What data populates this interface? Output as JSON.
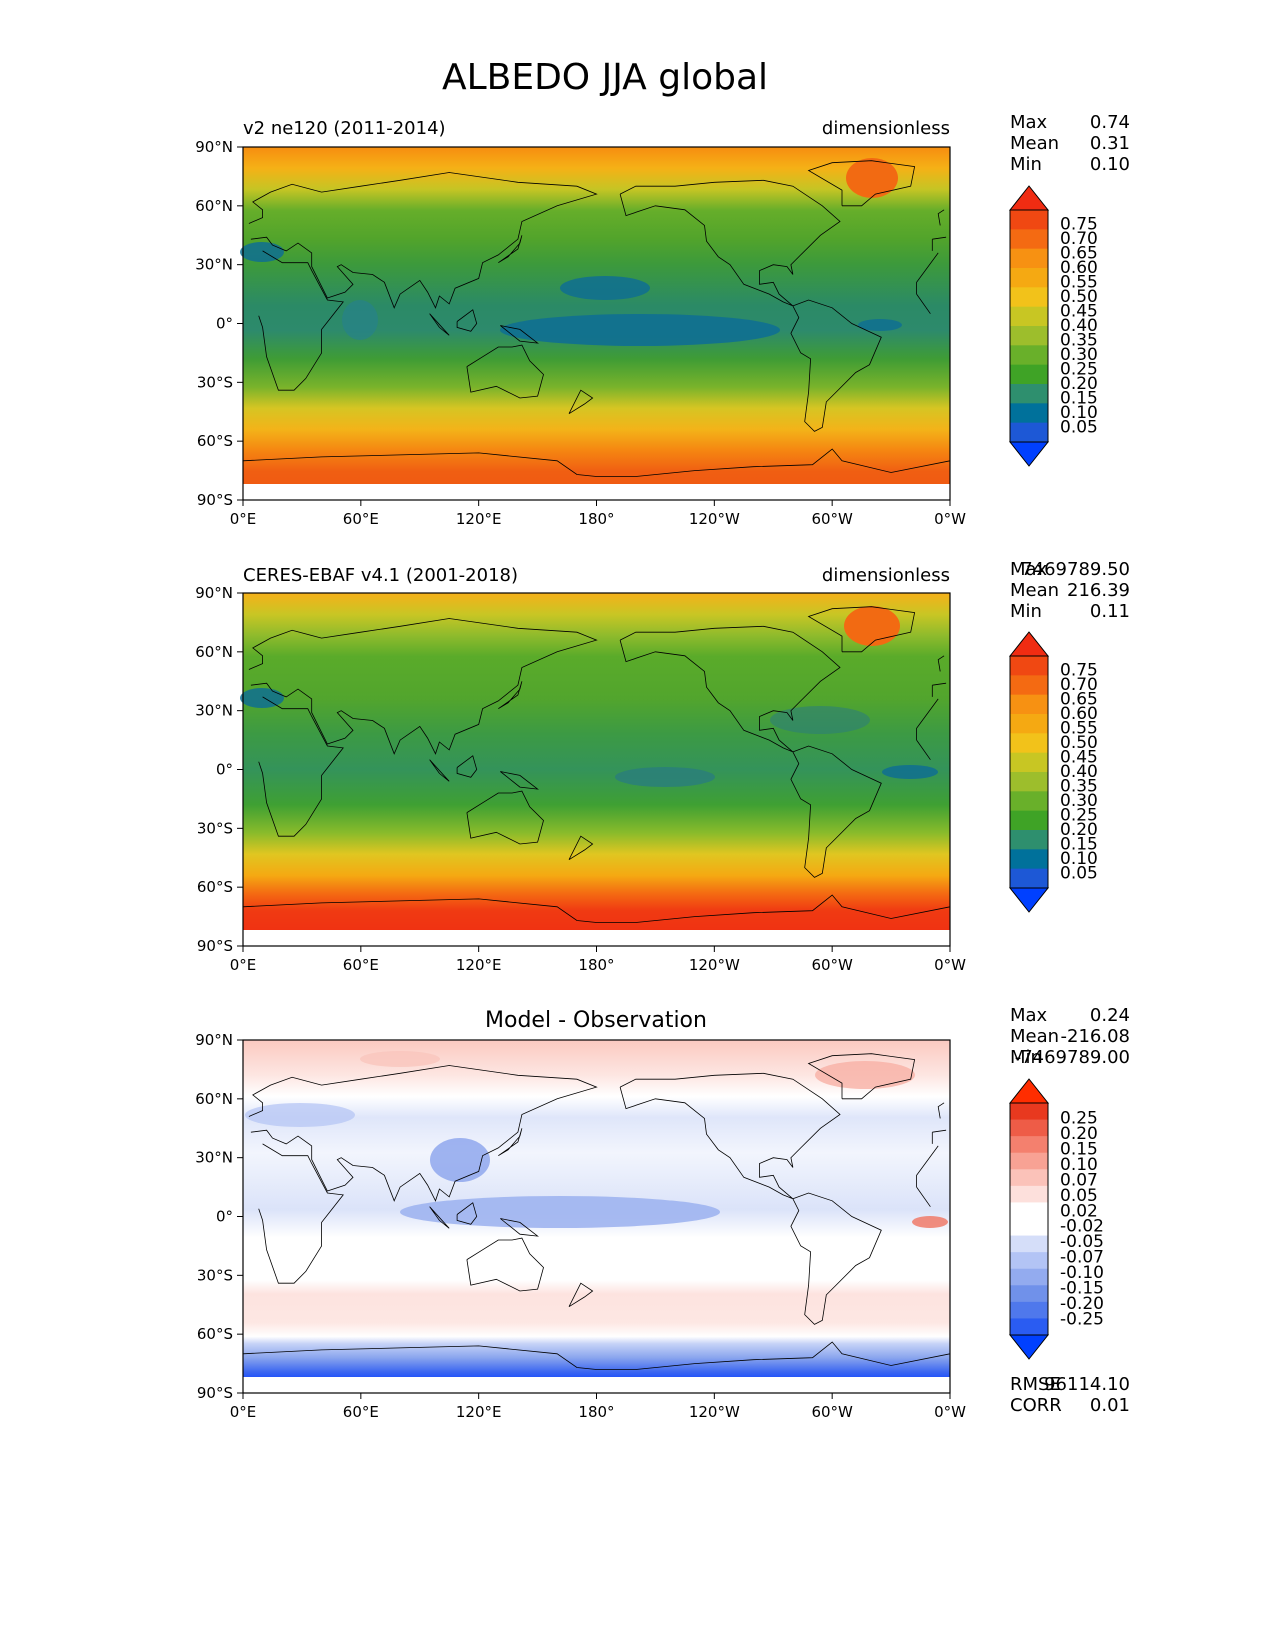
{
  "figure_title": "ALBEDO JJA global",
  "colors": {
    "model_levels": [
      "#0040ff",
      "#1d58d6",
      "#00719b",
      "#2e8f6e",
      "#3fa326",
      "#69b02a",
      "#9dbe2c",
      "#c8c623",
      "#f2c21a",
      "#f5a912",
      "#f79112",
      "#f46a12",
      "#f04812",
      "#f02c12"
    ],
    "diff_levels": [
      "#0040ff",
      "#2a5cf2",
      "#4f78ec",
      "#7091ea",
      "#93abef",
      "#b3c4f5",
      "#d5def9",
      "#ffffff",
      "#ffffff",
      "#fde0dc",
      "#fbc2b9",
      "#f8a294",
      "#f4806e",
      "#ee5c47",
      "#e8391f",
      "#ff2d00"
    ],
    "land_outline": "#000000"
  },
  "panels": [
    {
      "left_title": "v2 ne120 (2011-2014)",
      "right_title": "dimensionless",
      "center_title": "",
      "stats": [
        {
          "label": "Max",
          "value": "0.74"
        },
        {
          "label": "Mean",
          "value": "0.31"
        },
        {
          "label": "Min",
          "value": "0.10"
        }
      ],
      "colorbar_ticks": [
        "0.75",
        "0.70",
        "0.65",
        "0.60",
        "0.55",
        "0.50",
        "0.45",
        "0.40",
        "0.35",
        "0.30",
        "0.25",
        "0.20",
        "0.15",
        "0.10",
        "0.05"
      ],
      "metrics": []
    },
    {
      "left_title": "CERES-EBAF v4.1 (2001-2018)",
      "right_title": "dimensionless",
      "center_title": "",
      "stats": [
        {
          "label": "Max",
          "value": "7469789.50"
        },
        {
          "label": "Mean",
          "value": "216.39"
        },
        {
          "label": "Min",
          "value": "0.11"
        }
      ],
      "colorbar_ticks": [
        "0.75",
        "0.70",
        "0.65",
        "0.60",
        "0.55",
        "0.50",
        "0.45",
        "0.40",
        "0.35",
        "0.30",
        "0.25",
        "0.20",
        "0.15",
        "0.10",
        "0.05"
      ],
      "metrics": []
    },
    {
      "left_title": "",
      "right_title": "",
      "center_title": "Model - Observation",
      "stats": [
        {
          "label": "Max",
          "value": "0.24"
        },
        {
          "label": "Mean",
          "value": "-216.08"
        },
        {
          "label": "Min",
          "value": "-7469789.00"
        }
      ],
      "colorbar_ticks": [
        "0.25",
        "0.20",
        "0.15",
        "0.10",
        "0.07",
        "0.05",
        "0.02",
        "-0.02",
        "-0.05",
        "-0.07",
        "-0.10",
        "-0.15",
        "-0.20",
        "-0.25"
      ],
      "metrics": [
        {
          "label": "RMSE",
          "value": "96114.10"
        },
        {
          "label": "CORR",
          "value": "0.01"
        }
      ]
    }
  ],
  "axes": {
    "lat_ticks": [
      "90°N",
      "60°N",
      "30°N",
      "0°",
      "30°S",
      "60°S",
      "90°S"
    ],
    "lon_ticks": [
      "0°E",
      "60°E",
      "120°E",
      "180°",
      "120°W",
      "60°W",
      "0°W"
    ]
  },
  "chart_data": [
    {
      "type": "heatmap",
      "title": "v2 ne120 (2011-2014)",
      "units": "dimensionless",
      "xlabel": "",
      "ylabel": "",
      "x_ticks": [
        "0°E",
        "60°E",
        "120°E",
        "180°",
        "120°W",
        "60°W",
        "0°W"
      ],
      "y_ticks": [
        "90°N",
        "60°N",
        "30°N",
        "0°",
        "30°S",
        "60°S",
        "90°S"
      ],
      "xlim": [
        0,
        360
      ],
      "ylim": [
        -90,
        90
      ],
      "levels": [
        0.05,
        0.1,
        0.15,
        0.2,
        0.25,
        0.3,
        0.35,
        0.4,
        0.45,
        0.5,
        0.55,
        0.6,
        0.65,
        0.7,
        0.75
      ],
      "zonal_profile": {
        "lat": [
          85,
          75,
          65,
          55,
          45,
          35,
          25,
          15,
          5,
          -5,
          -15,
          -25,
          -35,
          -45,
          -55,
          -65,
          -75
        ],
        "albedo": [
          0.62,
          0.5,
          0.4,
          0.38,
          0.33,
          0.25,
          0.22,
          0.2,
          0.18,
          0.17,
          0.2,
          0.23,
          0.32,
          0.45,
          0.55,
          0.62,
          0.68
        ]
      },
      "max": 0.74,
      "mean": 0.31,
      "min": 0.1
    },
    {
      "type": "heatmap",
      "title": "CERES-EBAF v4.1 (2001-2018)",
      "units": "dimensionless",
      "xlabel": "",
      "ylabel": "",
      "x_ticks": [
        "0°E",
        "60°E",
        "120°E",
        "180°",
        "120°W",
        "60°W",
        "0°W"
      ],
      "y_ticks": [
        "90°N",
        "60°N",
        "30°N",
        "0°",
        "30°S",
        "60°S",
        "90°S"
      ],
      "xlim": [
        0,
        360
      ],
      "ylim": [
        -90,
        90
      ],
      "levels": [
        0.05,
        0.1,
        0.15,
        0.2,
        0.25,
        0.3,
        0.35,
        0.4,
        0.45,
        0.5,
        0.55,
        0.6,
        0.65,
        0.7,
        0.75
      ],
      "zonal_profile": {
        "lat": [
          85,
          75,
          65,
          55,
          45,
          35,
          25,
          15,
          5,
          -5,
          -15,
          -25,
          -35,
          -45,
          -55,
          -65,
          -75
        ],
        "albedo": [
          0.55,
          0.45,
          0.4,
          0.38,
          0.36,
          0.28,
          0.24,
          0.23,
          0.21,
          0.2,
          0.22,
          0.25,
          0.34,
          0.46,
          0.58,
          0.68,
          0.74
        ]
      },
      "max": 7469789.5,
      "mean": 216.39,
      "min": 0.11
    },
    {
      "type": "heatmap",
      "title": "Model - Observation",
      "units": "",
      "xlabel": "",
      "ylabel": "",
      "x_ticks": [
        "0°E",
        "60°E",
        "120°E",
        "180°",
        "120°W",
        "60°W",
        "0°W"
      ],
      "y_ticks": [
        "90°N",
        "60°N",
        "30°N",
        "0°",
        "30°S",
        "60°S",
        "90°S"
      ],
      "xlim": [
        0,
        360
      ],
      "ylim": [
        -90,
        90
      ],
      "levels": [
        -0.25,
        -0.2,
        -0.15,
        -0.1,
        -0.07,
        -0.05,
        -0.02,
        0.02,
        0.05,
        0.07,
        0.1,
        0.15,
        0.2,
        0.25
      ],
      "zonal_profile": {
        "lat": [
          85,
          75,
          65,
          55,
          45,
          35,
          25,
          15,
          5,
          -5,
          -15,
          -25,
          -35,
          -45,
          -55,
          -65,
          -75
        ],
        "diff": [
          0.04,
          0.03,
          -0.02,
          -0.03,
          -0.01,
          0.0,
          -0.02,
          -0.03,
          -0.04,
          -0.02,
          -0.01,
          0.0,
          0.03,
          0.03,
          -0.02,
          -0.08,
          -0.2
        ]
      },
      "max": 0.24,
      "mean": -216.08,
      "min": -7469789.0,
      "rmse": 96114.1,
      "corr": 0.01
    }
  ]
}
